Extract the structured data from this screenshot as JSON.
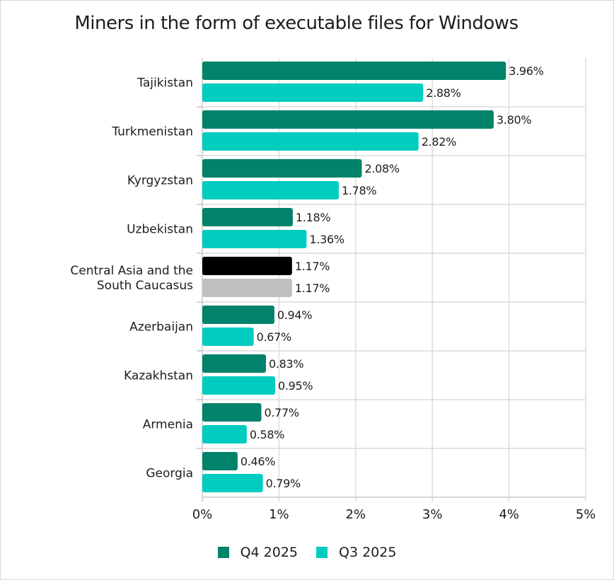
{
  "chart_data": {
    "type": "bar",
    "orientation": "horizontal",
    "title": "Miners in the form of executable files for Windows",
    "categories": [
      "Tajikistan",
      "Turkmenistan",
      "Kyrgyzstan",
      "Uzbekistan",
      "Central Asia and the South Caucasus",
      "Azerbaijan",
      "Kazakhstan",
      "Armenia",
      "Georgia"
    ],
    "category_lines": [
      [
        "Tajikistan"
      ],
      [
        "Turkmenistan"
      ],
      [
        "Kyrgyzstan"
      ],
      [
        "Uzbekistan"
      ],
      [
        "Central Asia and the",
        "South Caucasus"
      ],
      [
        "Azerbaijan"
      ],
      [
        "Kazakhstan"
      ],
      [
        "Armenia"
      ],
      [
        "Georgia"
      ]
    ],
    "series": [
      {
        "name": "Q4 2025",
        "color": "#00826b",
        "values": [
          3.96,
          3.8,
          2.08,
          1.18,
          1.17,
          0.94,
          0.83,
          0.77,
          0.46
        ],
        "labels": [
          "3.96%",
          "3.80%",
          "2.08%",
          "1.18%",
          "1.17%",
          "0.94%",
          "0.83%",
          "0.77%",
          "0.46%"
        ]
      },
      {
        "name": "Q3 2025",
        "color": "#00ccbf",
        "values": [
          2.88,
          2.82,
          1.78,
          1.36,
          1.17,
          0.67,
          0.95,
          0.58,
          0.79
        ],
        "labels": [
          "2.88%",
          "2.82%",
          "1.78%",
          "1.36%",
          "1.17%",
          "0.67%",
          "0.95%",
          "0.58%",
          "0.79%"
        ]
      }
    ],
    "highlight": {
      "category_index": 4,
      "colors": [
        "#000000",
        "#bfbfbf"
      ]
    },
    "xlim": [
      0,
      5
    ],
    "xticks": [
      "0%",
      "1%",
      "2%",
      "3%",
      "4%",
      "5%"
    ],
    "xlabel": "",
    "ylabel": "",
    "grid": true,
    "legend_position": "bottom"
  }
}
